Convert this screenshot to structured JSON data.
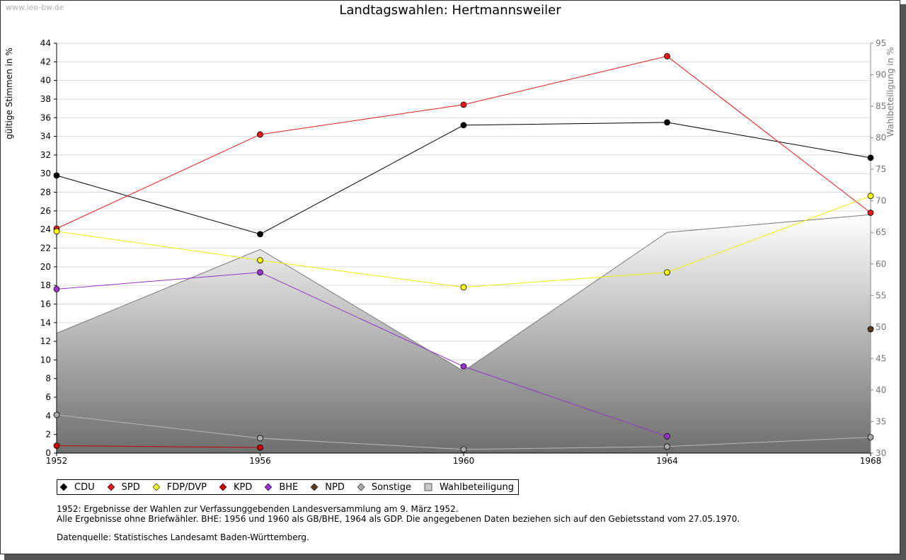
{
  "watermark": "www.leo-bw.de",
  "chart_data": {
    "type": "line",
    "title": "Landtagswahlen: Hertmannsweiler",
    "ylabel": "gültige Stimmen in %",
    "y2label": "Wahlbeteiligung in %",
    "x": [
      "1952",
      "1956",
      "1960",
      "1964",
      "1968"
    ],
    "ylim": [
      0,
      44
    ],
    "yticks": [
      "0",
      "2",
      "4",
      "6",
      "8",
      "10",
      "12",
      "14",
      "16",
      "18",
      "20",
      "22",
      "24",
      "26",
      "28",
      "30",
      "32",
      "34",
      "36",
      "38",
      "40",
      "42",
      "44"
    ],
    "y2lim": [
      30,
      95
    ],
    "y2ticks": [
      "30",
      "35",
      "40",
      "45",
      "50",
      "55",
      "60",
      "65",
      "70",
      "75",
      "80",
      "85",
      "90",
      "95"
    ],
    "series": [
      {
        "name": "CDU",
        "color": "#000000",
        "values": [
          29.8,
          23.5,
          35.2,
          35.5,
          31.7
        ]
      },
      {
        "name": "SPD",
        "color": "#e41a1c",
        "values": [
          24.1,
          34.2,
          37.4,
          42.6,
          25.8
        ]
      },
      {
        "name": "FDP/DVP",
        "color": "#ffff00",
        "line_color": "#f0f000",
        "values": [
          23.8,
          20.7,
          17.8,
          19.4,
          27.6
        ]
      },
      {
        "name": "KPD",
        "color": "#cc0000",
        "values": [
          0.8,
          0.6,
          null,
          null,
          null
        ]
      },
      {
        "name": "BHE",
        "color": "#9933cc",
        "values": [
          17.6,
          19.4,
          9.3,
          1.8,
          null
        ]
      },
      {
        "name": "NPD",
        "color": "#5a3a1a",
        "values": [
          null,
          null,
          null,
          null,
          13.3
        ]
      },
      {
        "name": "Sonstige",
        "color": "#aaaaaa",
        "line_color": "#b8b8b8",
        "values": [
          4.1,
          1.6,
          0.4,
          0.7,
          1.7
        ]
      }
    ],
    "area_series": {
      "name": "Wahlbeteiligung",
      "axis": "right",
      "values": [
        49.0,
        62.3,
        43.0,
        65.0,
        67.8
      ]
    }
  },
  "legend": [
    {
      "label": "CDU",
      "color": "#000000",
      "shape": "diamond"
    },
    {
      "label": "SPD",
      "color": "#e41a1c",
      "shape": "diamond"
    },
    {
      "label": "FDP/DVP",
      "color": "#ffff00",
      "shape": "diamond"
    },
    {
      "label": "KPD",
      "color": "#cc0000",
      "shape": "diamond"
    },
    {
      "label": "BHE",
      "color": "#9933cc",
      "shape": "diamond"
    },
    {
      "label": "NPD",
      "color": "#5a3a1a",
      "shape": "diamond"
    },
    {
      "label": "Sonstige",
      "color": "#aaaaaa",
      "shape": "diamond"
    },
    {
      "label": "Wahlbeteiligung",
      "color": "#cccccc",
      "shape": "square"
    }
  ],
  "notes": {
    "line1": "1952: Ergebnisse der Wahlen zur Verfassunggebenden Landesversammlung am 9. März 1952.",
    "line2": "Alle Ergebnisse ohne Briefwähler. BHE: 1956 und 1960 als GB/BHE, 1964 als GDP. Die angegebenen Daten beziehen sich auf den Gebietsstand vom 27.05.1970.",
    "line3": "Datenquelle: Statistisches Landesamt Baden-Württemberg."
  }
}
